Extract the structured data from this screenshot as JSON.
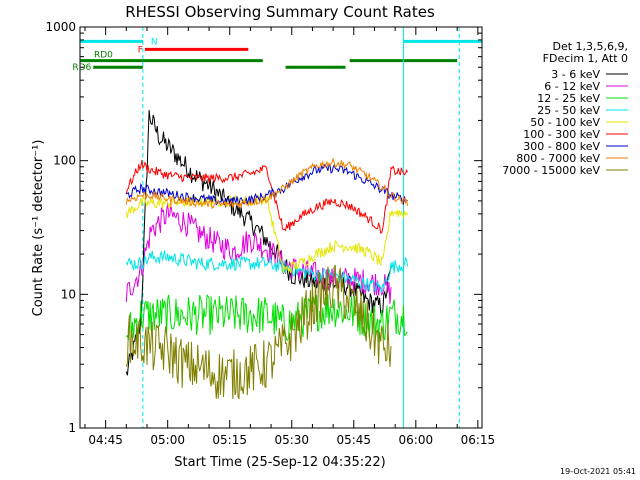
{
  "chart_data": {
    "type": "line",
    "title": "RHESSI Observing Summary Count Rates",
    "xlabel": "Start Time (25-Sep-12 04:35:22)",
    "ylabel": "Count Rate (s⁻¹ detector⁻¹)",
    "yscale": "log",
    "ylim": [
      1,
      1000
    ],
    "xlim": [
      38.8,
      136
    ],
    "x_units": "minutes after 04:00 UT",
    "y_ticks": [
      {
        "v": 1,
        "label": "1"
      },
      {
        "v": 10,
        "label": "10"
      },
      {
        "v": 100,
        "label": "100"
      },
      {
        "v": 1000,
        "label": "1000"
      }
    ],
    "x_ticks": [
      {
        "v": 45,
        "label": "04:45"
      },
      {
        "v": 60,
        "label": "05:00"
      },
      {
        "v": 75,
        "label": "05:15"
      },
      {
        "v": 90,
        "label": "05:30"
      },
      {
        "v": 105,
        "label": "05:45"
      },
      {
        "v": 120,
        "label": "06:00"
      },
      {
        "v": 135,
        "label": "06:15"
      }
    ],
    "legend": {
      "placement": "right",
      "header": [
        "Det 1,3,5,6,9,",
        "FDecim 1, Att 0"
      ]
    },
    "series": [
      {
        "name": "3 - 6 keV",
        "color": "#000000",
        "x": [
          50,
          53.5,
          55.5,
          58,
          62,
          66,
          70,
          74,
          78,
          82,
          86,
          90,
          96,
          100,
          104,
          108,
          112,
          114
        ],
        "y": [
          2.5,
          6,
          220,
          150,
          110,
          80,
          65,
          50,
          40,
          30,
          21,
          14,
          12,
          12,
          11.5,
          9,
          8,
          15
        ]
      },
      {
        "name": "6 - 12 keV",
        "color": "#e000e0",
        "x": [
          50,
          53.5,
          56,
          60,
          64,
          68,
          72,
          76,
          80,
          84,
          88,
          92,
          96,
          100,
          104,
          108,
          112,
          114
        ],
        "y": [
          10,
          15,
          30,
          40,
          35,
          28,
          24,
          21,
          26,
          22,
          17,
          15,
          14,
          13,
          13,
          12.5,
          12,
          10
        ]
      },
      {
        "name": "12 - 25 keV",
        "color": "#00e000",
        "x": [
          50,
          53.5,
          56,
          60,
          64,
          68,
          72,
          76,
          80,
          84,
          88,
          92,
          96,
          100,
          104,
          108,
          112,
          114,
          118
        ],
        "y": [
          5,
          7,
          7,
          7,
          7,
          7,
          7,
          7,
          7,
          7,
          6,
          6.5,
          7.5,
          8,
          7.5,
          6.5,
          6,
          7,
          7
        ]
      },
      {
        "name": "25 - 50 keV",
        "color": "#00e5e5",
        "x": [
          50,
          53.5,
          56,
          60,
          64,
          68,
          72,
          76,
          80,
          84,
          88,
          92,
          96,
          100,
          104,
          108,
          112,
          114,
          118
        ],
        "y": [
          17,
          17,
          19,
          19,
          18,
          17,
          17,
          17,
          17,
          17,
          16,
          15,
          14,
          14,
          13,
          12,
          11,
          16,
          17
        ]
      },
      {
        "name": "50 - 100 keV",
        "color": "#e6e600",
        "x": [
          50,
          53.5,
          56,
          60,
          64,
          68,
          72,
          76,
          80,
          84,
          88,
          92,
          96,
          100,
          104,
          108,
          112,
          114,
          118
        ],
        "y": [
          40,
          48,
          48,
          48,
          49,
          50,
          50,
          50,
          50,
          52,
          15,
          17,
          20,
          23,
          23,
          21,
          17,
          42,
          40
        ]
      },
      {
        "name": "100 - 300 keV",
        "color": "#ff0000",
        "x": [
          50,
          53.5,
          56,
          60,
          64,
          68,
          72,
          76,
          80,
          84,
          88,
          92,
          96,
          100,
          104,
          108,
          112,
          114,
          118
        ],
        "y": [
          60,
          95,
          85,
          78,
          75,
          74,
          74,
          75,
          80,
          88,
          30,
          38,
          45,
          50,
          46,
          38,
          30,
          85,
          80
        ]
      },
      {
        "name": "300 - 800 keV",
        "color": "#0000d0",
        "x": [
          50,
          53.5,
          56,
          60,
          64,
          68,
          72,
          76,
          80,
          84,
          88,
          92,
          96,
          100,
          104,
          108,
          112,
          114,
          118
        ],
        "y": [
          55,
          62,
          60,
          57,
          54,
          52,
          50,
          50,
          51,
          55,
          62,
          75,
          85,
          88,
          82,
          70,
          60,
          55,
          50
        ]
      },
      {
        "name": "800 - 7000 keV",
        "color": "#f08000",
        "x": [
          50,
          53.5,
          56,
          60,
          64,
          68,
          72,
          76,
          80,
          84,
          88,
          92,
          96,
          100,
          104,
          108,
          112,
          114,
          118
        ],
        "y": [
          50,
          55,
          55,
          52,
          50,
          48,
          47,
          47,
          49,
          52,
          62,
          78,
          92,
          97,
          92,
          78,
          63,
          55,
          48
        ]
      },
      {
        "name": "7000 - 15000 keV",
        "color": "#808000",
        "x": [
          50,
          53.5,
          56,
          60,
          64,
          68,
          72,
          76,
          80,
          84,
          88,
          92,
          96,
          100,
          104,
          108,
          112,
          114
        ],
        "y": [
          4.5,
          4.5,
          4,
          3.8,
          3,
          2.8,
          2.5,
          2.5,
          2.7,
          3,
          4,
          6,
          9,
          11.5,
          9,
          6,
          4,
          4
        ]
      }
    ],
    "annotations": [
      {
        "label": "N",
        "color": "#00e5e5",
        "level": 780,
        "segments": [
          [
            38.8,
            54
          ],
          [
            117,
            136
          ]
        ]
      },
      {
        "label": "F",
        "color": "#ff0000",
        "level": 680,
        "segments": [
          [
            54.5,
            79.5
          ]
        ]
      },
      {
        "label": "RD0",
        "color": "#008000",
        "level": 560,
        "segments": [
          [
            38.8,
            54
          ],
          [
            54,
            83
          ],
          [
            104,
            130
          ]
        ]
      },
      {
        "label": "RD6",
        "color": "#008000",
        "level": 500,
        "segments": [
          [
            42,
            54
          ],
          [
            88.5,
            103
          ]
        ]
      }
    ],
    "vlines": [
      {
        "color": "#00e5e5",
        "x": 38.8,
        "style": "solid"
      },
      {
        "color": "#00e5e5",
        "x": 54,
        "style": "dashed"
      },
      {
        "color": "#00e5e5",
        "x": 117,
        "style": "solid"
      },
      {
        "color": "#00e5e5",
        "x": 130.5,
        "style": "dashed"
      }
    ],
    "footer_date": "19-Oct-2021 05:41"
  }
}
